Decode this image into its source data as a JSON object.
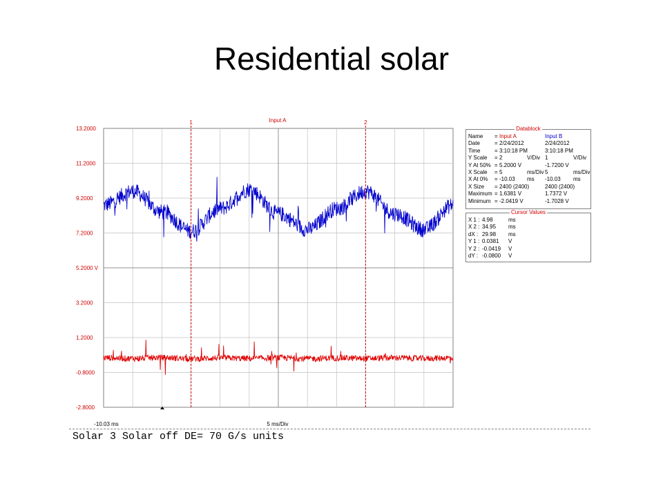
{
  "slide": {
    "title": "Residential solar"
  },
  "scope": {
    "channel_label": "Input A",
    "y_tick_labels": [
      "13.2000",
      "11.2000",
      "9.2000",
      "7.2000",
      "5.2000 V",
      "3.2000",
      "1.2000",
      "-0.8000",
      "-2.8000"
    ],
    "x_start_label": "-10.03 ms",
    "x_scale_label": "5 ms/Div",
    "cursor_labels": [
      "1",
      "2"
    ],
    "colors": {
      "input_a": "#0000cc",
      "input_b": "#e00000",
      "cursor": "#d00000",
      "grid": "#c0c0c0"
    }
  },
  "datablock": {
    "title": "Datablock",
    "rows": [
      {
        "label": "Name",
        "eq": "=",
        "a": "Input A",
        "a_unit": "",
        "b": "Input B",
        "b_unit": ""
      },
      {
        "label": "Date",
        "eq": "=",
        "a": "2/24/2012",
        "a_unit": "",
        "b": "2/24/2012",
        "b_unit": ""
      },
      {
        "label": "Time",
        "eq": "=",
        "a": "3:10:18 PM",
        "a_unit": "",
        "b": "3:10:18 PM",
        "b_unit": ""
      },
      {
        "label": "Y Scale",
        "eq": "=",
        "a": "2",
        "a_unit": "V/Div",
        "b": "1",
        "b_unit": "V/Div"
      },
      {
        "label": "Y At 50%",
        "eq": "=",
        "a": "5.2000 V",
        "a_unit": "",
        "b": "-1.7200 V",
        "b_unit": ""
      },
      {
        "label": "X Scale",
        "eq": "=",
        "a": "5",
        "a_unit": "ms/Div",
        "b": "5",
        "b_unit": "ms/Div"
      },
      {
        "label": "X At 0%",
        "eq": "=",
        "a": "-10.03",
        "a_unit": "ms",
        "b": "-10.03",
        "b_unit": "ms"
      },
      {
        "label": "X Size",
        "eq": "=",
        "a": "2400 (2400)",
        "a_unit": "",
        "b": "2400 (2400)",
        "b_unit": ""
      },
      {
        "label": "Maximum",
        "eq": "=",
        "a": "1.6381 V",
        "a_unit": "",
        "b": "1.7372 V",
        "b_unit": ""
      },
      {
        "label": "Minimum",
        "eq": "=",
        "a": "-2.0419 V",
        "a_unit": "",
        "b": "-1.7028 V",
        "b_unit": ""
      }
    ]
  },
  "cursor_values": {
    "title": "Cursor Values",
    "rows": [
      {
        "label": "X 1 :",
        "value": "4.98",
        "unit": "ms"
      },
      {
        "label": "X 2 :",
        "value": "34.95",
        "unit": "ms"
      },
      {
        "label": "dX :",
        "value": "29.98",
        "unit": "ms"
      },
      {
        "label": "Y 1 :",
        "value": "0.0381",
        "unit": "V"
      },
      {
        "label": "Y 2 :",
        "value": "-0.0419",
        "unit": "V"
      },
      {
        "label": "dY :",
        "value": "-0.0800",
        "unit": "V"
      }
    ]
  },
  "footer": {
    "text": "Solar 3 Solar off DE= 70 G/s units"
  },
  "chart_data": {
    "type": "line",
    "title": "Input A",
    "xlabel": "5 ms/Div",
    "ylabel": "",
    "xlim": [
      -10.03,
      49.97
    ],
    "ylim": [
      -2.8,
      13.2
    ],
    "grid": true,
    "cursors_ms": [
      4.98,
      34.95
    ],
    "series": [
      {
        "name": "Input A",
        "axis_note": "5.2000 V at center, 2 V/Div",
        "x": [
          -10,
          -5,
          0,
          5,
          10,
          15,
          20,
          25,
          30,
          35,
          40,
          45,
          50
        ],
        "values": [
          8.8,
          9.6,
          8.4,
          7.3,
          8.6,
          9.7,
          8.3,
          7.4,
          8.6,
          9.6,
          8.3,
          7.4,
          8.8
        ]
      },
      {
        "name": "Input B",
        "axis_note": "-1.7200 V at center, 1 V/Div",
        "x": [
          -10,
          -5,
          0,
          5,
          10,
          15,
          20,
          25,
          30,
          35,
          40,
          45,
          50
        ],
        "values": [
          0.04,
          0.0,
          0.05,
          -0.02,
          0.03,
          0.0,
          0.04,
          -0.01,
          0.03,
          0.0,
          0.04,
          0.0,
          0.04
        ]
      }
    ]
  }
}
